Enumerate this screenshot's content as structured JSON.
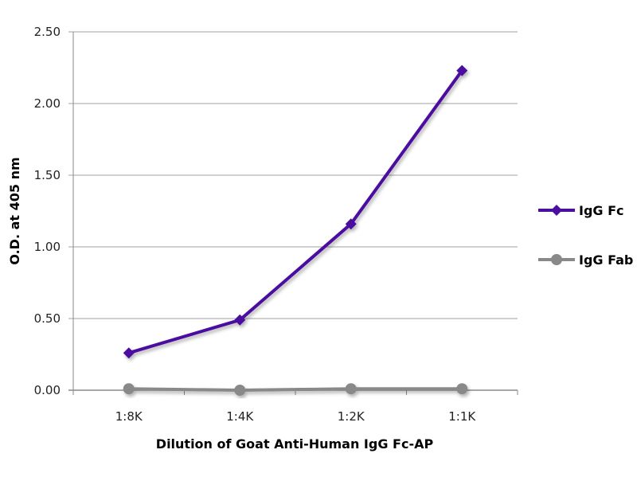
{
  "chart_data": {
    "type": "line",
    "title": "",
    "xlabel": "Dilution of Goat Anti-Human IgG Fc-AP",
    "ylabel": "O.D. at 405 nm",
    "categories": [
      "1:8K",
      "1:4K",
      "1:2K",
      "1:1K"
    ],
    "ylim": [
      0,
      2.5
    ],
    "yticks": [
      "0.00",
      "0.50",
      "1.00",
      "1.50",
      "2.00",
      "2.50"
    ],
    "grid": true,
    "legend_position": "right",
    "series": [
      {
        "name": "IgG Fc",
        "values": [
          0.26,
          0.49,
          1.16,
          2.23
        ],
        "color": "#4b0fa0",
        "marker": "diamond"
      },
      {
        "name": "IgG Fab",
        "values": [
          0.01,
          0.0,
          0.01,
          0.01
        ],
        "color": "#898989",
        "marker": "circle"
      }
    ]
  }
}
